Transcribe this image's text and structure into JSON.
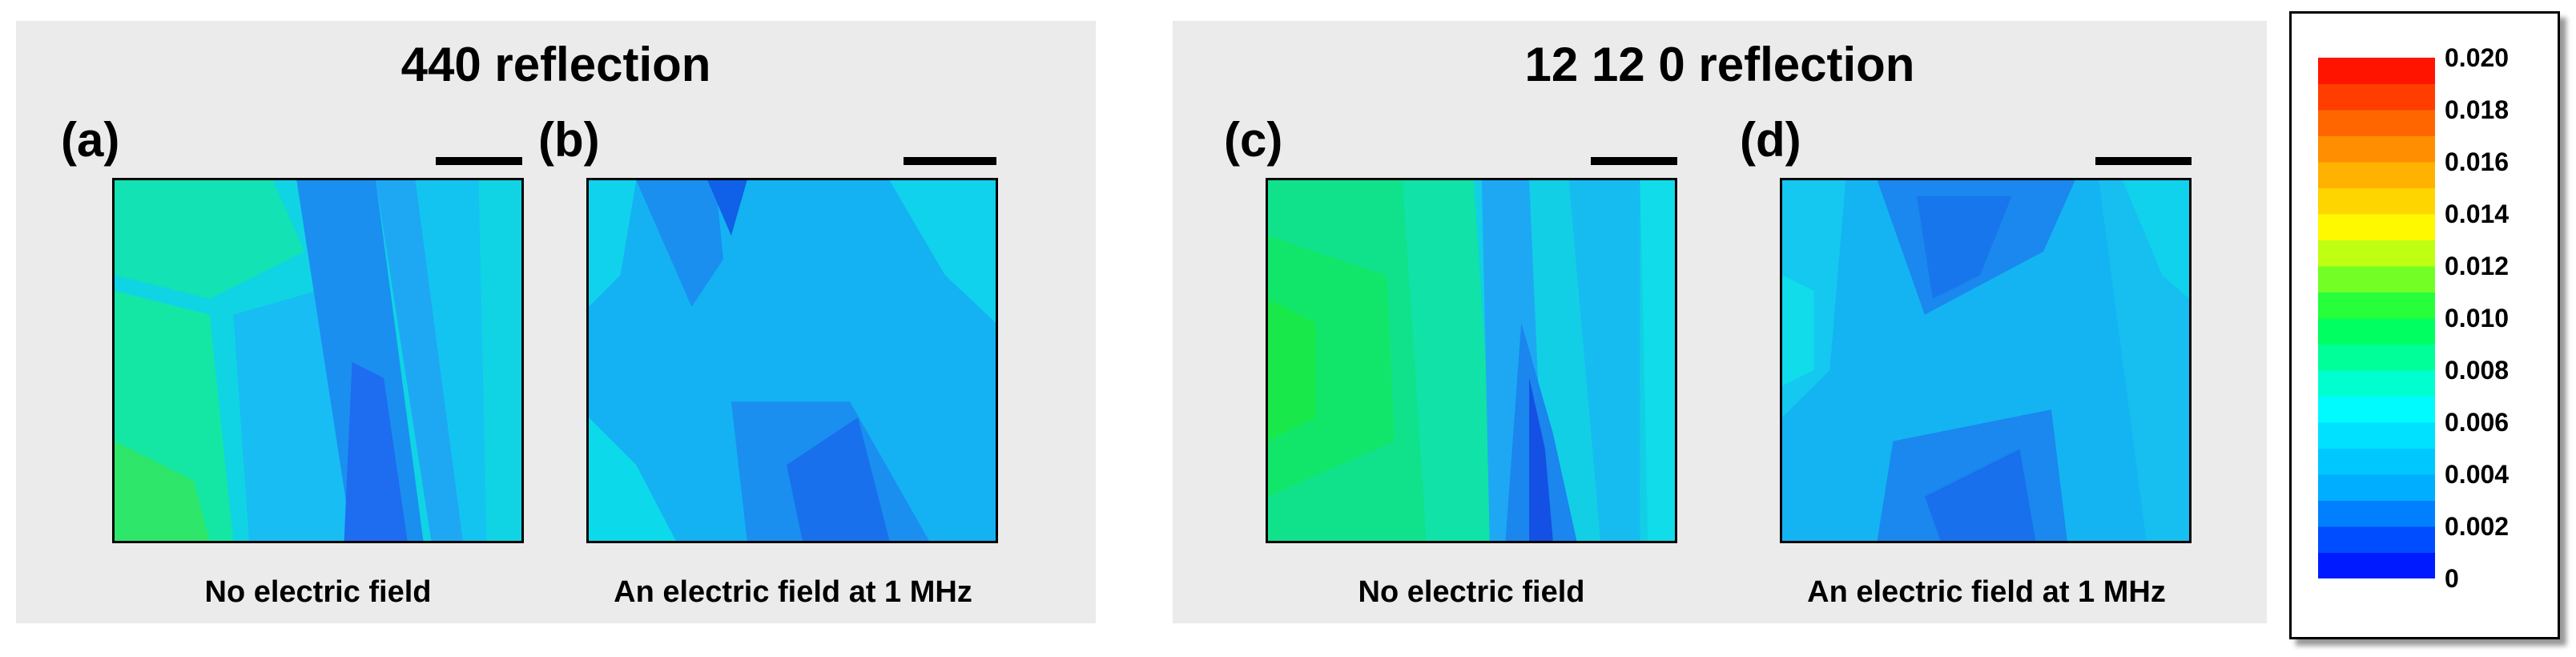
{
  "groups": [
    {
      "title": "440 reflection"
    },
    {
      "title": "12 12 0 reflection"
    }
  ],
  "panels": [
    {
      "label": "(a)",
      "caption": "No electric field"
    },
    {
      "label": "(b)",
      "caption": "An electric field at 1 MHz"
    },
    {
      "label": "(c)",
      "caption": "No electric field"
    },
    {
      "label": "(d)",
      "caption": "An electric field at 1 MHz"
    }
  ],
  "colorbar": {
    "ticks": [
      "0.020",
      "0.018",
      "0.016",
      "0.014",
      "0.012",
      "0.010",
      "0.008",
      "0.006",
      "0.004",
      "0.002",
      "0"
    ],
    "min": 0,
    "max": 0.02,
    "colors": [
      "#0000ff",
      "#00aaff",
      "#00ffff",
      "#00ff44",
      "#ffff00",
      "#ff8800",
      "#ff0000"
    ]
  }
}
